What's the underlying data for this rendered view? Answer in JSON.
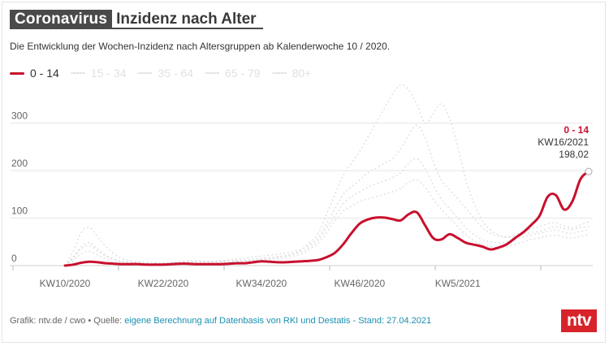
{
  "header": {
    "brand": "Coronavirus",
    "title": "Inzidenz nach Alter"
  },
  "subtitle": "Die Entwicklung der Wochen-Inzidenz nach Altersgruppen ab Kalenderwoche 10 / 2020.",
  "legend": [
    {
      "label": "0 - 14",
      "active": true
    },
    {
      "label": "15 - 34",
      "active": false
    },
    {
      "label": "35 - 64",
      "active": false
    },
    {
      "label": "65 - 79",
      "active": false
    },
    {
      "label": "80+",
      "active": false
    }
  ],
  "annotation": {
    "series": "0 - 14",
    "week": "KW16/2021",
    "value": "198,02"
  },
  "footer": {
    "prefix": "Grafik: ntv.de / cwo • Quelle: ",
    "source": "eigene Berechnung auf Datenbasis von RKI und Destatis - Stand: 27.04.2021"
  },
  "logo": "ntv",
  "colors": {
    "active": "#c8102e",
    "inactive": "#dddddd",
    "grid": "#e6e6e6"
  },
  "chart_data": {
    "type": "line",
    "title": "Inzidenz nach Alter",
    "xlabel": "",
    "ylabel": "",
    "ylim": [
      0,
      400
    ],
    "yticks": [
      0,
      100,
      200,
      300
    ],
    "x_start_week": 10,
    "x_tick_labels": [
      {
        "label": "KW10/2020",
        "index": 0
      },
      {
        "label": "KW22/2020",
        "index": 12
      },
      {
        "label": "KW34/2020",
        "index": 24
      },
      {
        "label": "KW46/2020",
        "index": 36
      },
      {
        "label": "KW5/2021",
        "index": 48
      }
    ],
    "series": [
      {
        "name": "0 - 14",
        "active": true,
        "values": [
          0,
          2,
          6,
          8,
          7,
          5,
          4,
          3,
          3,
          3,
          2,
          2,
          2,
          3,
          4,
          4,
          3,
          3,
          3,
          3,
          4,
          5,
          5,
          7,
          9,
          8,
          7,
          7,
          8,
          9,
          10,
          12,
          18,
          27,
          45,
          68,
          88,
          97,
          101,
          101,
          98,
          95,
          108,
          112,
          85,
          58,
          55,
          66,
          58,
          48,
          44,
          40,
          34,
          38,
          45,
          58,
          70,
          86,
          105,
          145,
          148,
          118,
          135,
          182,
          198.02
        ]
      },
      {
        "name": "15 - 34",
        "active": false,
        "values": [
          0,
          15,
          35,
          42,
          30,
          20,
          12,
          8,
          6,
          5,
          4,
          4,
          5,
          6,
          8,
          10,
          10,
          9,
          9,
          10,
          12,
          14,
          16,
          18,
          20,
          22,
          24,
          26,
          30,
          35,
          45,
          60,
          90,
          120,
          150,
          165,
          180,
          195,
          205,
          215,
          225,
          245,
          275,
          295,
          270,
          220,
          180,
          160,
          140,
          120,
          100,
          80,
          68,
          62,
          60,
          65,
          72,
          78,
          82,
          88,
          90,
          84,
          80,
          86,
          92
        ]
      },
      {
        "name": "35 - 64",
        "active": false,
        "values": [
          0,
          18,
          40,
          48,
          35,
          22,
          14,
          9,
          7,
          6,
          5,
          5,
          5,
          6,
          7,
          8,
          8,
          8,
          8,
          9,
          10,
          11,
          12,
          13,
          15,
          17,
          19,
          21,
          25,
          30,
          40,
          55,
          80,
          105,
          130,
          145,
          155,
          165,
          172,
          178,
          185,
          195,
          215,
          225,
          205,
          170,
          140,
          120,
          100,
          80,
          65,
          55,
          50,
          48,
          50,
          55,
          60,
          65,
          68,
          72,
          75,
          70,
          68,
          72,
          75
        ]
      },
      {
        "name": "65 - 79",
        "active": false,
        "values": [
          0,
          10,
          25,
          30,
          22,
          14,
          9,
          6,
          5,
          4,
          4,
          4,
          4,
          4,
          5,
          5,
          5,
          5,
          5,
          6,
          7,
          8,
          9,
          10,
          11,
          12,
          14,
          16,
          20,
          25,
          35,
          48,
          70,
          95,
          115,
          125,
          135,
          140,
          145,
          150,
          155,
          162,
          175,
          180,
          165,
          140,
          118,
          100,
          82,
          65,
          52,
          44,
          40,
          38,
          40,
          44,
          50,
          55,
          58,
          62,
          64,
          60,
          58,
          62,
          65
        ]
      },
      {
        "name": "80+",
        "active": false,
        "values": [
          0,
          30,
          70,
          80,
          60,
          40,
          25,
          15,
          10,
          8,
          7,
          6,
          6,
          6,
          6,
          7,
          7,
          7,
          7,
          8,
          9,
          10,
          11,
          12,
          13,
          15,
          17,
          20,
          25,
          35,
          50,
          70,
          110,
          150,
          190,
          215,
          240,
          270,
          300,
          330,
          360,
          380,
          370,
          340,
          300,
          320,
          340,
          310,
          250,
          180,
          130,
          95,
          75,
          65,
          60,
          62,
          65,
          70,
          72,
          78,
          82,
          78,
          76,
          80,
          82
        ]
      }
    ]
  }
}
